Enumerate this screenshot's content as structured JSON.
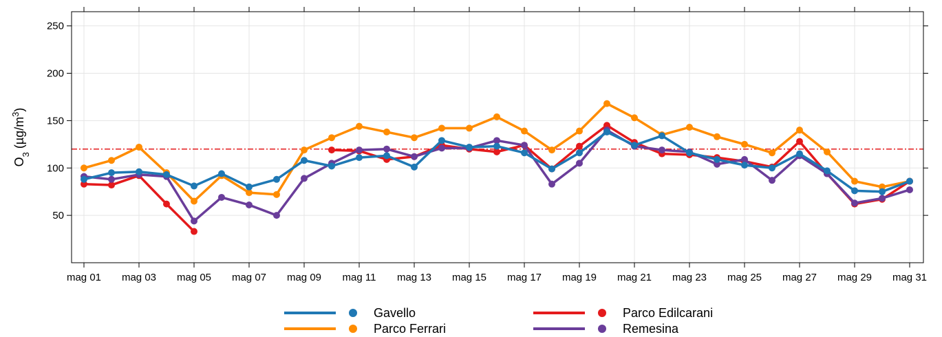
{
  "chart_data": {
    "type": "line",
    "ylabel": {
      "base": "O",
      "sub": "3",
      "unit_open": " (µg/m",
      "unit_sup": "3",
      "unit_close": ")"
    },
    "ylim": [
      0,
      265
    ],
    "yticks": [
      50,
      100,
      150,
      200,
      250
    ],
    "ytick_labels": [
      "50",
      "100",
      "150",
      "200",
      "250"
    ],
    "xlim": [
      0.55,
      31.5
    ],
    "xticks": [
      1,
      3,
      5,
      7,
      9,
      11,
      13,
      15,
      17,
      19,
      21,
      23,
      25,
      27,
      29,
      31
    ],
    "xtick_labels": [
      "mag 01",
      "mag 03",
      "mag 05",
      "mag 07",
      "mag 09",
      "mag 11",
      "mag 13",
      "mag 15",
      "mag 17",
      "mag 19",
      "mag 21",
      "mag 23",
      "mag 25",
      "mag 27",
      "mag 29",
      "mag 31"
    ],
    "grid": true,
    "threshold": {
      "value": 120,
      "color": "#e41a1c",
      "style": "dash-dot"
    },
    "legend_position": "bottom",
    "x": [
      1,
      2,
      3,
      4,
      5,
      6,
      7,
      8,
      9,
      10,
      11,
      12,
      13,
      14,
      15,
      16,
      17,
      18,
      19,
      20,
      21,
      22,
      23,
      24,
      25,
      26,
      27,
      28,
      29,
      30,
      31
    ],
    "series": [
      {
        "name": "Gavello",
        "color": "#1f78b4",
        "values": [
          88,
          95,
          96,
          93,
          81,
          94,
          80,
          88,
          108,
          102,
          111,
          113,
          101,
          129,
          122,
          123,
          116,
          99,
          116,
          138,
          124,
          134,
          116,
          109,
          103,
          100,
          115,
          97,
          76,
          75,
          86
        ]
      },
      {
        "name": "Parco Ferrari",
        "color": "#ff8c00",
        "values": [
          100,
          108,
          122,
          95,
          65,
          92,
          74,
          72,
          119,
          132,
          144,
          138,
          132,
          142,
          142,
          154,
          139,
          119,
          139,
          168,
          153,
          135,
          143,
          133,
          125,
          116,
          140,
          117,
          86,
          80,
          86
        ]
      },
      {
        "name": "Parco Edilcarani",
        "color": "#e41a1c",
        "values": [
          83,
          82,
          92,
          62,
          33,
          null,
          null,
          null,
          null,
          119,
          118,
          109,
          112,
          124,
          120,
          117,
          124,
          99,
          123,
          145,
          127,
          115,
          114,
          111,
          107,
          101,
          128,
          94,
          62,
          67,
          86
        ]
      },
      {
        "name": "Remesina",
        "color": "#6a3d9a",
        "values": [
          91,
          88,
          93,
          91,
          44,
          69,
          61,
          50,
          89,
          105,
          119,
          120,
          112,
          121,
          121,
          129,
          124,
          83,
          105,
          140,
          123,
          119,
          117,
          104,
          109,
          87,
          113,
          94,
          63,
          68,
          77
        ]
      }
    ],
    "series_draw_order": [
      1,
      2,
      3,
      0
    ]
  }
}
